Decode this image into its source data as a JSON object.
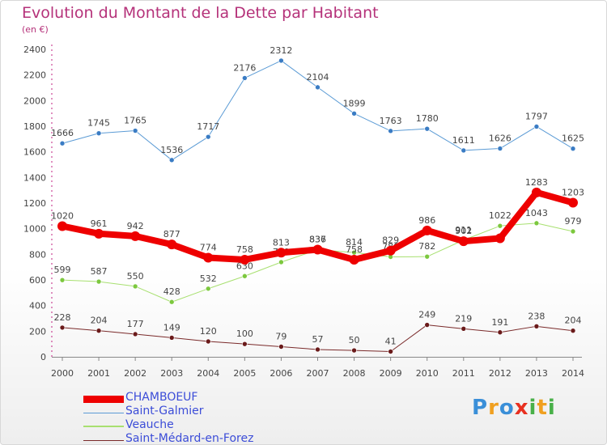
{
  "title": "Evolution du Montant de la Dette par Habitant",
  "subtitle": "(en €)",
  "logo": {
    "text": "Proxiti",
    "letters": [
      "P",
      "r",
      "o",
      "x",
      "i",
      "t",
      "i"
    ],
    "colors": [
      "#3a8fd8",
      "#f0a020",
      "#3a8fd8",
      "#e83020",
      "#48b048",
      "#f0a020",
      "#48b048"
    ]
  },
  "chart_data": {
    "type": "line",
    "x": [
      "2000",
      "2001",
      "2002",
      "2003",
      "2004",
      "2005",
      "2006",
      "2007",
      "2008",
      "2009",
      "2010",
      "2011",
      "2012",
      "2013",
      "2014"
    ],
    "ylim": [
      0,
      2400
    ],
    "yticks": [
      "0",
      "200",
      "400",
      "600",
      "800",
      "1000",
      "1200",
      "1400",
      "1600",
      "1800",
      "2000",
      "2200",
      "2400"
    ],
    "grid": false,
    "legend_position": "bottom-left",
    "series": [
      {
        "name": "Saint-Galmier",
        "color": "#5b9bd5",
        "dot": "#3a7cc4",
        "width": 1,
        "values": [
          1666,
          1745,
          1765,
          1536,
          1717,
          2176,
          2312,
          2104,
          1899,
          1763,
          1780,
          1611,
          1626,
          1797,
          1625
        ],
        "labels": [
          "1666",
          "1745",
          "1765",
          "1536",
          "1717",
          "2176",
          "2312",
          "2104",
          "1899",
          "1763",
          "1780",
          "1611",
          "1626",
          "1797",
          "1625"
        ]
      },
      {
        "name": "Veauche",
        "color": "#a8e070",
        "dot": "#7cc83e",
        "width": 1,
        "values": [
          599,
          587,
          550,
          428,
          532,
          630,
          739,
          836,
          814,
          780,
          782,
          911,
          1022,
          1043,
          979
        ],
        "labels": [
          "599",
          "587",
          "550",
          "428",
          "532",
          "630",
          "739",
          "836",
          "814",
          "780",
          "782",
          "911",
          "1022",
          "1043",
          "979"
        ]
      },
      {
        "name": "CHAMBOEUF",
        "color": "#ee0000",
        "dot": "#ee0000",
        "width": 8,
        "values": [
          1020,
          961,
          942,
          877,
          774,
          758,
          813,
          837,
          758,
          829,
          986,
          902,
          925,
          1283,
          1203
        ],
        "labels": [
          "1020",
          "961",
          "942",
          "877",
          "774",
          "758",
          "813",
          "837",
          "758",
          "829",
          "986",
          "902",
          "",
          "1283",
          "1203"
        ]
      },
      {
        "name": "Saint-Médard-en-Forez",
        "color": "#7a2a2a",
        "dot": "#6a1a1a",
        "width": 1,
        "values": [
          228,
          204,
          177,
          149,
          120,
          100,
          79,
          57,
          50,
          41,
          249,
          219,
          191,
          238,
          204
        ],
        "labels": [
          "228",
          "204",
          "177",
          "149",
          "120",
          "100",
          "79",
          "57",
          "50",
          "41",
          "249",
          "219",
          "191",
          "238",
          "204"
        ]
      }
    ],
    "legend": [
      {
        "name": "CHAMBOEUF",
        "color": "#ee0000",
        "width": 9
      },
      {
        "name": "Saint-Galmier",
        "color": "#5b9bd5",
        "width": 1
      },
      {
        "name": "Veauche",
        "color": "#a8e070",
        "width": 2
      },
      {
        "name": "Saint-Médard-en-Forez",
        "color": "#7a2a2a",
        "width": 1
      }
    ]
  }
}
